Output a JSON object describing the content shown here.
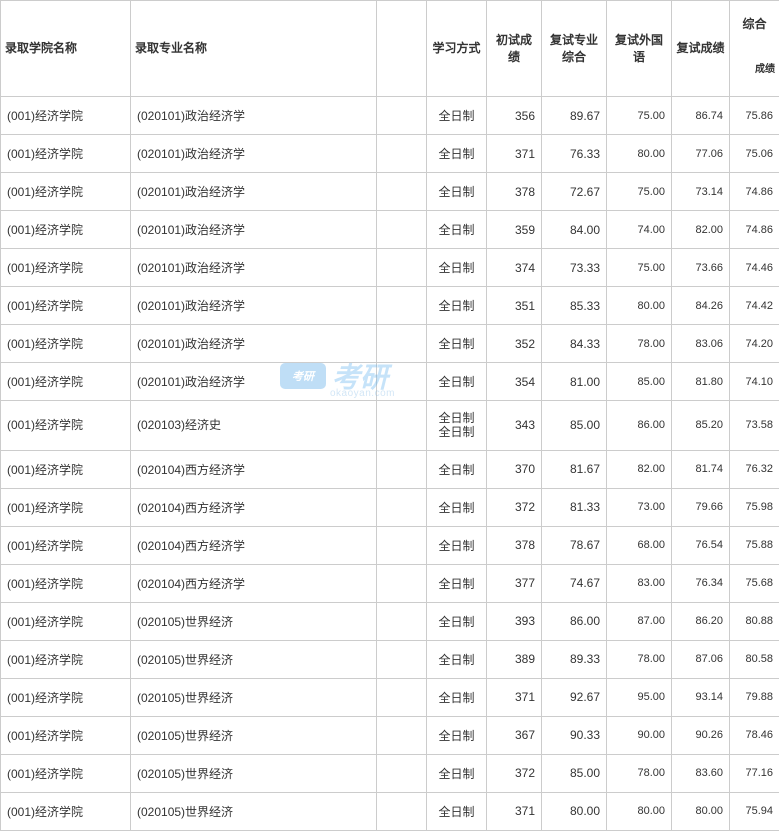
{
  "columns": {
    "school": "录取学院名称",
    "major": "录取专业名称",
    "mode": "学习方式",
    "s1": "初试成绩",
    "s2": "复试专业综合",
    "s3": "复试外国语",
    "s4": "复试成绩",
    "s5": "综合",
    "s5_sub": "成绩"
  },
  "watermark": {
    "badge": "考研",
    "text": "考研",
    "url": "okaoyan.com"
  },
  "rows": [
    {
      "school": "(001)经济学院",
      "major": "(020101)政治经济学",
      "mode": "全日制",
      "s1": "356",
      "s2": "89.67",
      "s3": "75.00",
      "s4": "86.74",
      "s5": "75.86"
    },
    {
      "school": "(001)经济学院",
      "major": "(020101)政治经济学",
      "mode": "全日制",
      "s1": "371",
      "s2": "76.33",
      "s3": "80.00",
      "s4": "77.06",
      "s5": "75.06"
    },
    {
      "school": "(001)经济学院",
      "major": "(020101)政治经济学",
      "mode": "全日制",
      "s1": "378",
      "s2": "72.67",
      "s3": "75.00",
      "s4": "73.14",
      "s5": "74.86"
    },
    {
      "school": "(001)经济学院",
      "major": "(020101)政治经济学",
      "mode": "全日制",
      "s1": "359",
      "s2": "84.00",
      "s3": "74.00",
      "s4": "82.00",
      "s5": "74.86"
    },
    {
      "school": "(001)经济学院",
      "major": "(020101)政治经济学",
      "mode": "全日制",
      "s1": "374",
      "s2": "73.33",
      "s3": "75.00",
      "s4": "73.66",
      "s5": "74.46"
    },
    {
      "school": "(001)经济学院",
      "major": "(020101)政治经济学",
      "mode": "全日制",
      "s1": "351",
      "s2": "85.33",
      "s3": "80.00",
      "s4": "84.26",
      "s5": "74.42"
    },
    {
      "school": "(001)经济学院",
      "major": "(020101)政治经济学",
      "mode": "全日制",
      "s1": "352",
      "s2": "84.33",
      "s3": "78.00",
      "s4": "83.06",
      "s5": "74.20"
    },
    {
      "school": "(001)经济学院",
      "major": "(020101)政治经济学",
      "mode": "全日制",
      "s1": "354",
      "s2": "81.00",
      "s3": "85.00",
      "s4": "81.80",
      "s5": "74.10"
    },
    {
      "school": "(001)经济学院",
      "major": "(020103)经济史",
      "mode": "全日制",
      "s1": "343",
      "s2": "85.00",
      "s3": "86.00",
      "s4": "85.20",
      "s5": "73.58",
      "double": true
    },
    {
      "school": "(001)经济学院",
      "major": "(020104)西方经济学",
      "mode": "全日制",
      "s1": "370",
      "s2": "81.67",
      "s3": "82.00",
      "s4": "81.74",
      "s5": "76.32"
    },
    {
      "school": "(001)经济学院",
      "major": "(020104)西方经济学",
      "mode": "全日制",
      "s1": "372",
      "s2": "81.33",
      "s3": "73.00",
      "s4": "79.66",
      "s5": "75.98"
    },
    {
      "school": "(001)经济学院",
      "major": "(020104)西方经济学",
      "mode": "全日制",
      "s1": "378",
      "s2": "78.67",
      "s3": "68.00",
      "s4": "76.54",
      "s5": "75.88"
    },
    {
      "school": "(001)经济学院",
      "major": "(020104)西方经济学",
      "mode": "全日制",
      "s1": "377",
      "s2": "74.67",
      "s3": "83.00",
      "s4": "76.34",
      "s5": "75.68"
    },
    {
      "school": "(001)经济学院",
      "major": "(020105)世界经济",
      "mode": "全日制",
      "s1": "393",
      "s2": "86.00",
      "s3": "87.00",
      "s4": "86.20",
      "s5": "80.88"
    },
    {
      "school": "(001)经济学院",
      "major": "(020105)世界经济",
      "mode": "全日制",
      "s1": "389",
      "s2": "89.33",
      "s3": "78.00",
      "s4": "87.06",
      "s5": "80.58"
    },
    {
      "school": "(001)经济学院",
      "major": "(020105)世界经济",
      "mode": "全日制",
      "s1": "371",
      "s2": "92.67",
      "s3": "95.00",
      "s4": "93.14",
      "s5": "79.88"
    },
    {
      "school": "(001)经济学院",
      "major": "(020105)世界经济",
      "mode": "全日制",
      "s1": "367",
      "s2": "90.33",
      "s3": "90.00",
      "s4": "90.26",
      "s5": "78.46"
    },
    {
      "school": "(001)经济学院",
      "major": "(020105)世界经济",
      "mode": "全日制",
      "s1": "372",
      "s2": "85.00",
      "s3": "78.00",
      "s4": "83.60",
      "s5": "77.16"
    },
    {
      "school": "(001)经济学院",
      "major": "(020105)世界经济",
      "mode": "全日制",
      "s1": "371",
      "s2": "80.00",
      "s3": "80.00",
      "s4": "80.00",
      "s5": "75.94"
    }
  ],
  "style": {
    "border_color": "#cccccc",
    "text_color": "#333333",
    "header_fontsize": 12,
    "cell_fontsize": 12,
    "small_fontsize": 11,
    "background": "#ffffff",
    "watermark_color": "#5db0ee",
    "watermark_badge_bg": "#4aa3e8"
  }
}
